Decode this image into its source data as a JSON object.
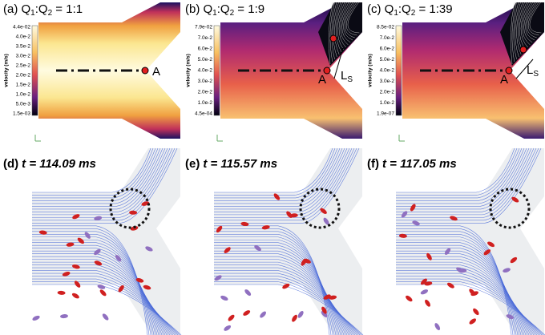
{
  "panels_top": [
    {
      "title": [
        "(a) Q",
        "1",
        ":Q",
        "2",
        " = 1:1"
      ],
      "colorbar_label": "velocity (m/s)",
      "colorbar_ticks": [
        "4.4e-02",
        "4.0e-2",
        "3.5e-2",
        "3.0e-2",
        "2.5e-2",
        "2.0e-2",
        "1.5e-2",
        "1.0e-2",
        "5.0e-3",
        "1.5e-03"
      ],
      "point_label": "A"
    },
    {
      "title": [
        "(b) Q",
        "1",
        ":Q",
        "2",
        " = 1:9"
      ],
      "colorbar_label": "velocity (m/s)",
      "colorbar_ticks": [
        "7.9e-02",
        "7.0e-2",
        "6.0e-2",
        "5.0e-2",
        "4.0e-2",
        "3.0e-2",
        "2.0e-2",
        "1.0e-2",
        "4.5e-04"
      ],
      "point_label": "A",
      "length_label": [
        "L",
        "S"
      ]
    },
    {
      "title": [
        "(c) Q",
        "1",
        ":Q",
        "2",
        " = 1:39"
      ],
      "colorbar_label": "velocity (m/s)",
      "colorbar_ticks": [
        "8.5e-02",
        "7.0e-2",
        "6.0e-2",
        "5.0e-2",
        "4.0e-2",
        "3.0e-2",
        "2.0e-2",
        "1.0e-2",
        "1.9e-07"
      ],
      "point_label": "A",
      "length_label": [
        "L",
        "S"
      ]
    }
  ],
  "panels_bottom": [
    {
      "label": "(d)",
      "time": "t = 114.09 ms"
    },
    {
      "label": "(e)",
      "time": "t = 115.57 ms"
    },
    {
      "label": "(f)",
      "time": "t = 117.05 ms"
    }
  ]
}
